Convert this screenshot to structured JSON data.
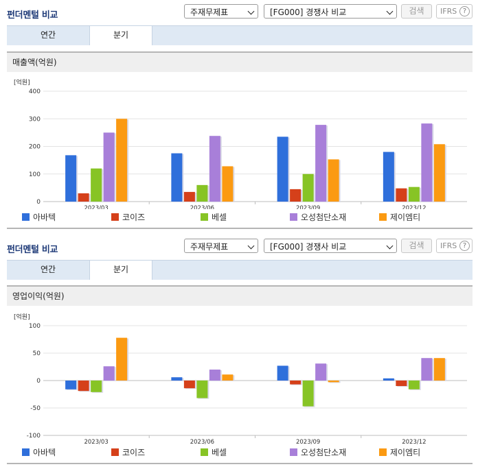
{
  "panels": [
    {
      "title": "펀더멘털 비교",
      "select_theme": "주재무제표",
      "select_compare": "[FG000] 경쟁사 비교",
      "search_label": "검색",
      "ifrs_label": "IFRS",
      "ifrs_help": "?",
      "tabs": [
        "연간",
        "분기"
      ],
      "active_tab": "분기",
      "chart_title": "매출액(억원)",
      "legend": [
        "아바텍",
        "코이즈",
        "베셀",
        "오성첨단소재",
        "제이엠티"
      ]
    },
    {
      "title": "펀더멘털 비교",
      "select_theme": "주재무제표",
      "select_compare": "[FG000] 경쟁사 비교",
      "search_label": "검색",
      "ifrs_label": "IFRS",
      "ifrs_help": "?",
      "tabs": [
        "연간",
        "분기"
      ],
      "active_tab": "분기",
      "chart_title": "영업이익(억원)",
      "legend": [
        "아바텍",
        "코이즈",
        "베셀",
        "오성첨단소재",
        "제이엠티"
      ]
    }
  ],
  "colors": [
    "#2f6fdb",
    "#d5401a",
    "#87c425",
    "#a87fd9",
    "#fb9a12"
  ],
  "chart_data": [
    {
      "type": "bar",
      "title": "매출액(억원)",
      "ylabel": "[억원]",
      "xlabel": "",
      "categories": [
        "2023/03",
        "2023/06",
        "2023/09",
        "2023/12"
      ],
      "ylim": [
        0,
        400
      ],
      "yticks": [
        0,
        100,
        200,
        300,
        400
      ],
      "grid": true,
      "legend_position": "bottom",
      "series": [
        {
          "name": "아바텍",
          "values": [
            168,
            175,
            235,
            180
          ]
        },
        {
          "name": "코이즈",
          "values": [
            30,
            35,
            45,
            48
          ]
        },
        {
          "name": "베셀",
          "values": [
            120,
            60,
            100,
            53
          ]
        },
        {
          "name": "오성첨단소재",
          "values": [
            250,
            238,
            278,
            283
          ]
        },
        {
          "name": "제이엠티",
          "values": [
            300,
            128,
            153,
            208
          ]
        }
      ]
    },
    {
      "type": "bar",
      "title": "영업이익(억원)",
      "ylabel": "[억원]",
      "xlabel": "",
      "categories": [
        "2023/03",
        "2023/06",
        "2023/09",
        "2023/12"
      ],
      "ylim": [
        -100,
        100
      ],
      "yticks": [
        -100,
        -50,
        0,
        50,
        100
      ],
      "grid": true,
      "legend_position": "bottom",
      "series": [
        {
          "name": "아바텍",
          "values": [
            -16,
            6,
            27,
            4
          ]
        },
        {
          "name": "코이즈",
          "values": [
            -19,
            -14,
            -7,
            -10
          ]
        },
        {
          "name": "베셀",
          "values": [
            -21,
            -32,
            -47,
            -16
          ]
        },
        {
          "name": "오성첨단소재",
          "values": [
            26,
            20,
            31,
            41
          ]
        },
        {
          "name": "제이엠티",
          "values": [
            78,
            11,
            -3,
            41
          ]
        }
      ]
    }
  ]
}
